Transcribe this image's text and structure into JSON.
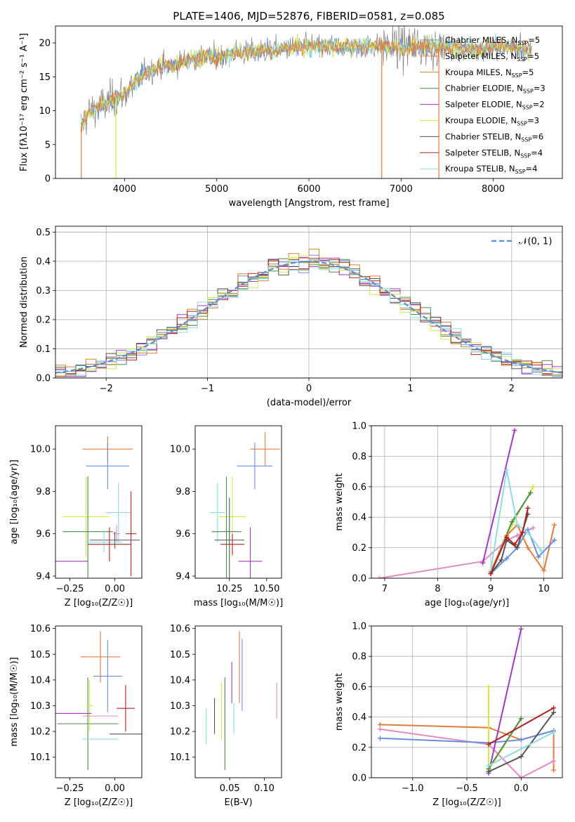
{
  "page": {
    "title": "PLATE=1406, MJD=52876, FIBERID=0581, z=0.085"
  },
  "colors": {
    "Chabrier MILES": "#6b8fe0",
    "Salpeter MILES": "#e07c3c",
    "Kroupa MILES": "#c48b21",
    "Chabrier ELODIE": "#4f8a4f",
    "Salpeter ELODIE": "#a23ac0",
    "Kroupa ELODIE": "#d4e64a",
    "Chabrier STELIB": "#555555",
    "Salpeter STELIB": "#b22222",
    "Kroupa STELIB": "#8fdde0",
    "pink": "#e38cc4"
  },
  "chart_data": [
    {
      "id": "spectrum",
      "type": "line",
      "title": "PLATE=1406, MJD=52876, FIBERID=0581, z=0.085",
      "xlabel": "wavelength [Angstrom, rest frame]",
      "ylabel": "Flux [fλ10⁻¹⁷ erg cm⁻² s⁻¹ A⁻¹]",
      "xlim": [
        3250,
        8750
      ],
      "ylim": [
        0,
        22.5
      ],
      "xticks": [
        4000,
        5000,
        6000,
        7000,
        8000
      ],
      "yticks": [
        0,
        5,
        10,
        15,
        20
      ],
      "continuum": {
        "x": [
          3520,
          3600,
          3700,
          3800,
          3900,
          4000,
          4100,
          4200,
          4400,
          4600,
          4800,
          5000,
          5200,
          5500,
          6000,
          6500,
          7000,
          7400,
          7800,
          8000,
          8300,
          8450
        ],
        "y": [
          7.5,
          9.5,
          10.5,
          11.0,
          12.0,
          12.5,
          14.0,
          15.5,
          16.5,
          17.0,
          17.8,
          18.0,
          18.5,
          18.8,
          19.5,
          19.5,
          19.5,
          19.5,
          19.0,
          19.5,
          19.2,
          18.5
        ]
      },
      "legend_position": "upper right",
      "legend": [
        {
          "label": "Chabrier MILES, N",
          "sub": "SSP",
          "n": "=5"
        },
        {
          "label": "Salpeter MILES, N",
          "sub": "SSP",
          "n": "=5"
        },
        {
          "label": "Kroupa MILES, N",
          "sub": "SSP",
          "n": "=5"
        },
        {
          "label": "Chabrier ELODIE, N",
          "sub": "SSP",
          "n": "=3"
        },
        {
          "label": "Salpeter ELODIE, N",
          "sub": "SSP",
          "n": "=2"
        },
        {
          "label": "Kroupa ELODIE, N",
          "sub": "SSP",
          "n": "=3"
        },
        {
          "label": "Chabrier STELIB, N",
          "sub": "SSP",
          "n": "=6"
        },
        {
          "label": "Salpeter STELIB, N",
          "sub": "SSP",
          "n": "=4"
        },
        {
          "label": "Kroupa STELIB, N",
          "sub": "SSP",
          "n": "=4"
        }
      ]
    },
    {
      "id": "residuals",
      "type": "line",
      "xlabel": "(data-model)/error",
      "ylabel": "Normed distribution",
      "xlim": [
        -2.5,
        2.5
      ],
      "ylim": [
        0,
        0.52
      ],
      "xticks": [
        -2,
        -1,
        0,
        1,
        2
      ],
      "xtick_labels": [
        "−2",
        "−1",
        "0",
        "1",
        "2"
      ],
      "yticks": [
        0,
        0.1,
        0.2,
        0.3,
        0.4,
        0.5
      ],
      "ytick_labels": [
        "0.0",
        "0.1",
        "0.2",
        "0.3",
        "0.4",
        "0.5"
      ],
      "grid": true,
      "bin_width": 0.1,
      "gaussian_label": "𝒩(0, 1)"
    },
    {
      "id": "age-vs-Z",
      "type": "scatter",
      "xlabel": "Z [log₁₀(Z/Z☉)]",
      "ylabel": "age  [log₁₀(age/yr)]",
      "xlim": [
        -0.33,
        0.15
      ],
      "ylim": [
        9.39,
        10.11
      ],
      "xticks": [
        -0.25,
        0.0
      ],
      "xtick_labels": [
        "−0.25",
        "0.00"
      ],
      "yticks": [
        9.4,
        9.6,
        9.8,
        10.0
      ],
      "ytick_labels": [
        "9.4",
        "9.6",
        "9.8",
        "10.0"
      ],
      "points": [
        {
          "series": "Salpeter MILES",
          "x": -0.04,
          "y": 10.0,
          "xerr": 0.14,
          "yerr": 0.06
        },
        {
          "series": "Chabrier MILES",
          "x": -0.04,
          "y": 9.92,
          "xerr": 0.12,
          "yerr": 0.11
        },
        {
          "series": "Kroupa STELIB",
          "x": 0.02,
          "y": 9.7,
          "xerr": 0.07,
          "yerr": 0.14
        },
        {
          "series": "Kroupa ELODIE",
          "x": -0.16,
          "y": 9.68,
          "xerr": 0.13,
          "yerr": 0.19
        },
        {
          "series": "Chabrier ELODIE",
          "x": -0.15,
          "y": 9.61,
          "xerr": 0.14,
          "yerr": 0.26
        },
        {
          "series": "pink",
          "x": 0.01,
          "y": 9.6,
          "xerr": 0.02,
          "yerr": 0.04
        },
        {
          "series": "Salpeter STELIB",
          "x": 0.09,
          "y": 9.6,
          "xerr": 0.03,
          "yerr": 0.2
        },
        {
          "series": "Chabrier STELIB",
          "x": 0.0,
          "y": 9.57,
          "xerr": 0.14,
          "yerr": 0.04
        },
        {
          "series": "Kroupa STELIB",
          "x": -0.06,
          "y": 9.56,
          "xerr": 0.1,
          "yerr": 0.05
        },
        {
          "series": "Salpeter STELIB",
          "x": -0.03,
          "y": 9.55,
          "xerr": 0.12,
          "yerr": 0.08
        },
        {
          "series": "Salpeter ELODIE",
          "x": -0.3,
          "y": 9.47,
          "xerr": 0.15,
          "yerr": 0.0
        }
      ]
    },
    {
      "id": "age-vs-mass",
      "type": "scatter",
      "xlabel": "mass [log₁₀(M/M☉)]",
      "xlim": [
        10.02,
        10.6
      ],
      "ylim": [
        9.39,
        10.11
      ],
      "xticks": [
        10.25,
        10.5
      ],
      "xtick_labels": [
        "10.25",
        "10.50"
      ],
      "yticks": [
        9.4,
        9.6,
        9.8,
        10.0
      ],
      "ytick_labels": [
        "9.4",
        "9.6",
        "9.8",
        "10.0"
      ],
      "points": [
        {
          "series": "Salpeter MILES",
          "x": 10.49,
          "y": 10.0,
          "xerr": 0.1,
          "yerr": 0.08
        },
        {
          "series": "Chabrier MILES",
          "x": 10.42,
          "y": 9.92,
          "xerr": 0.12,
          "yerr": 0.11
        },
        {
          "series": "Kroupa ELODIE",
          "x": 10.27,
          "y": 9.68,
          "xerr": 0.09,
          "yerr": 0.19
        },
        {
          "series": "Kroupa STELIB",
          "x": 10.17,
          "y": 9.7,
          "xerr": 0.05,
          "yerr": 0.14
        },
        {
          "series": "Chabrier ELODIE",
          "x": 10.23,
          "y": 9.61,
          "xerr": 0.1,
          "yerr": 0.26
        },
        {
          "series": "Chabrier STELIB",
          "x": 10.25,
          "y": 9.57,
          "xerr": 0.1,
          "yerr": 0.2
        },
        {
          "series": "Salpeter STELIB",
          "x": 10.27,
          "y": 9.55,
          "xerr": 0.08,
          "yerr": 0.05
        },
        {
          "series": "Salpeter ELODIE",
          "x": 10.39,
          "y": 9.47,
          "xerr": 0.08,
          "yerr": 0.16
        }
      ]
    },
    {
      "id": "weight-vs-age",
      "type": "line",
      "xlabel": "age  [log₁₀(age/yr)]",
      "ylabel": "mass weight",
      "xlim": [
        6.75,
        10.35
      ],
      "ylim": [
        0,
        1
      ],
      "xticks": [
        7,
        8,
        9,
        10
      ],
      "xtick_labels": [
        "7",
        "8",
        "9",
        "10"
      ],
      "yticks": [
        0,
        0.2,
        0.4,
        0.6,
        0.8,
        1.0
      ],
      "ytick_labels": [
        "0.0",
        "0.2",
        "0.4",
        "0.6",
        "0.8",
        "1.0"
      ],
      "grid": true,
      "series": [
        {
          "name": "pink",
          "x": [
            6.9,
            8.85,
            9.3,
            9.5,
            9.8
          ],
          "y": [
            0.0,
            0.11,
            0.25,
            0.28,
            0.33
          ]
        },
        {
          "name": "Salpeter ELODIE",
          "x": [
            8.85,
            9.45
          ],
          "y": [
            0.1,
            0.97
          ]
        },
        {
          "name": "Kroupa ELODIE",
          "x": [
            9.0,
            9.4,
            9.8
          ],
          "y": [
            0.05,
            0.35,
            0.6
          ]
        },
        {
          "name": "Chabrier ELODIE",
          "x": [
            9.0,
            9.4,
            9.75
          ],
          "y": [
            0.04,
            0.37,
            0.56
          ]
        },
        {
          "name": "Salpeter MILES",
          "x": [
            9.0,
            9.3,
            9.5,
            9.7,
            10.0,
            10.2
          ],
          "y": [
            0.04,
            0.28,
            0.35,
            0.2,
            0.05,
            0.35
          ]
        },
        {
          "name": "Chabrier MILES",
          "x": [
            9.0,
            9.3,
            9.5,
            9.7,
            9.9,
            10.2
          ],
          "y": [
            0.03,
            0.13,
            0.2,
            0.32,
            0.14,
            0.25
          ]
        },
        {
          "name": "Kroupa STELIB",
          "x": [
            9.0,
            9.3,
            9.5,
            9.7,
            9.95
          ],
          "y": [
            0.05,
            0.71,
            0.35,
            0.3,
            0.18
          ]
        },
        {
          "name": "Chabrier STELIB",
          "x": [
            9.0,
            9.2,
            9.3,
            9.5,
            9.7
          ],
          "y": [
            0.03,
            0.12,
            0.25,
            0.2,
            0.42
          ]
        },
        {
          "name": "Salpeter STELIB",
          "x": [
            9.0,
            9.3,
            9.45,
            9.6,
            9.7
          ],
          "y": [
            0.03,
            0.27,
            0.22,
            0.3,
            0.46
          ]
        }
      ]
    },
    {
      "id": "mass-vs-Z",
      "type": "scatter",
      "xlabel": "Z [log₁₀(Z/Z☉)]",
      "ylabel": "mass [log₁₀(M/M☉)]",
      "xlim": [
        -0.33,
        0.15
      ],
      "ylim": [
        10.02,
        10.61
      ],
      "xticks": [
        -0.25,
        0.0
      ],
      "xtick_labels": [
        "−0.25",
        "0.00"
      ],
      "yticks": [
        10.1,
        10.2,
        10.3,
        10.4,
        10.5,
        10.6
      ],
      "ytick_labels": [
        "10.1",
        "10.2",
        "10.3",
        "10.4",
        "10.5",
        "10.6"
      ],
      "points": [
        {
          "series": "Salpeter MILES",
          "x": -0.08,
          "y": 10.49,
          "xerr": 0.11,
          "yerr": 0.1
        },
        {
          "series": "Chabrier MILES",
          "x": -0.04,
          "y": 10.415,
          "xerr": 0.08,
          "yerr": 0.14
        },
        {
          "series": "Chabrier ELODIE",
          "x": -0.15,
          "y": 10.23,
          "xerr": 0.17,
          "yerr": 0.18
        },
        {
          "series": "Kroupa ELODIE",
          "x": -0.14,
          "y": 10.3,
          "xerr": 0.02,
          "yerr": 0.1
        },
        {
          "series": "Salpeter ELODIE",
          "x": -0.23,
          "y": 10.27,
          "xerr": 0.1,
          "yerr": 0.0
        },
        {
          "series": "Kroupa STELIB",
          "x": -0.08,
          "y": 10.17,
          "xerr": 0.1,
          "yerr": 0.0
        },
        {
          "series": "pink",
          "x": -0.08,
          "y": 10.26,
          "xerr": 0.1,
          "yerr": 0.0
        },
        {
          "series": "Salpeter STELIB",
          "x": 0.06,
          "y": 10.29,
          "xerr": 0.05,
          "yerr": 0.09
        },
        {
          "series": "Chabrier STELIB",
          "x": 0.06,
          "y": 10.19,
          "xerr": 0.09,
          "yerr": 0.0
        }
      ]
    },
    {
      "id": "mass-vs-EBV",
      "type": "scatter",
      "xlabel": "E(B-V)",
      "xlim": [
        0.0,
        0.125
      ],
      "ylim": [
        10.02,
        10.61
      ],
      "xticks": [
        0.05,
        0.1
      ],
      "xtick_labels": [
        "0.05",
        "0.10"
      ],
      "yticks": [
        10.1,
        10.2,
        10.3,
        10.4,
        10.5,
        10.6
      ],
      "ytick_labels": [
        "10.1",
        "10.2",
        "10.3",
        "10.4",
        "10.5",
        "10.6"
      ],
      "points": [
        {
          "series": "Kroupa STELIB",
          "x": 0.016,
          "y": 10.22,
          "yerr": 0.07
        },
        {
          "series": "Chabrier STELIB",
          "x": 0.028,
          "y": 10.26,
          "yerr": 0.07
        },
        {
          "series": "Kroupa ELODIE",
          "x": 0.038,
          "y": 10.28,
          "yerr": 0.11
        },
        {
          "series": "Chabrier ELODIE",
          "x": 0.043,
          "y": 10.23,
          "yerr": 0.18
        },
        {
          "series": "Salpeter ELODIE",
          "x": 0.053,
          "y": 10.39,
          "yerr": 0.08
        },
        {
          "series": "Kroupa STELIB",
          "x": 0.056,
          "y": 10.25,
          "yerr": 0.06
        },
        {
          "series": "Salpeter MILES",
          "x": 0.064,
          "y": 10.45,
          "yerr": 0.14
        },
        {
          "series": "Chabrier MILES",
          "x": 0.068,
          "y": 10.42,
          "yerr": 0.14
        },
        {
          "series": "pink",
          "x": 0.118,
          "y": 10.32,
          "yerr": 0.07
        }
      ]
    },
    {
      "id": "weight-vs-Z",
      "type": "line",
      "xlabel": "Z [log₁₀(Z/Z☉)]",
      "ylabel": "mass weight",
      "xlim": [
        -1.38,
        0.38
      ],
      "ylim": [
        0,
        1
      ],
      "xticks": [
        -1.0,
        -0.5,
        0.0
      ],
      "xtick_labels": [
        "−1.0",
        "−0.5",
        "0.0"
      ],
      "yticks": [
        0,
        0.2,
        0.4,
        0.6,
        0.8,
        1.0
      ],
      "ytick_labels": [
        "0.0",
        "0.2",
        "0.4",
        "0.6",
        "0.8",
        "1.0"
      ],
      "grid": true,
      "series": [
        {
          "name": "Salpeter MILES",
          "x": [
            -1.3,
            -0.3,
            0.0,
            0.3,
            0.3
          ],
          "y": [
            0.35,
            0.33,
            0.25,
            0.31,
            0.05
          ]
        },
        {
          "name": "pink",
          "x": [
            -1.3,
            -0.3,
            0.0,
            0.3
          ],
          "y": [
            0.32,
            0.22,
            0.0,
            0.11
          ]
        },
        {
          "name": "Chabrier MILES",
          "x": [
            -1.3,
            -0.3,
            0.0,
            0.3
          ],
          "y": [
            0.26,
            0.23,
            0.25,
            0.31
          ]
        },
        {
          "name": "Salpeter ELODIE",
          "x": [
            -0.3,
            0.0
          ],
          "y": [
            0.03,
            0.98
          ]
        },
        {
          "name": "Kroupa ELODIE",
          "x": [
            -0.3,
            -0.3,
            0.0
          ],
          "y": [
            0.6,
            0.05,
            0.39
          ]
        },
        {
          "name": "Chabrier ELODIE",
          "x": [
            -0.3,
            0.0
          ],
          "y": [
            0.06,
            0.39
          ]
        },
        {
          "name": "Salpeter STELIB",
          "x": [
            -0.3,
            0.3
          ],
          "y": [
            0.22,
            0.46
          ]
        },
        {
          "name": "Chabrier STELIB",
          "x": [
            -0.3,
            0.0,
            0.3
          ],
          "y": [
            0.04,
            0.14,
            0.43
          ]
        },
        {
          "name": "Kroupa STELIB",
          "x": [
            -0.3,
            0.3
          ],
          "y": [
            0.08,
            0.3
          ]
        }
      ]
    }
  ]
}
